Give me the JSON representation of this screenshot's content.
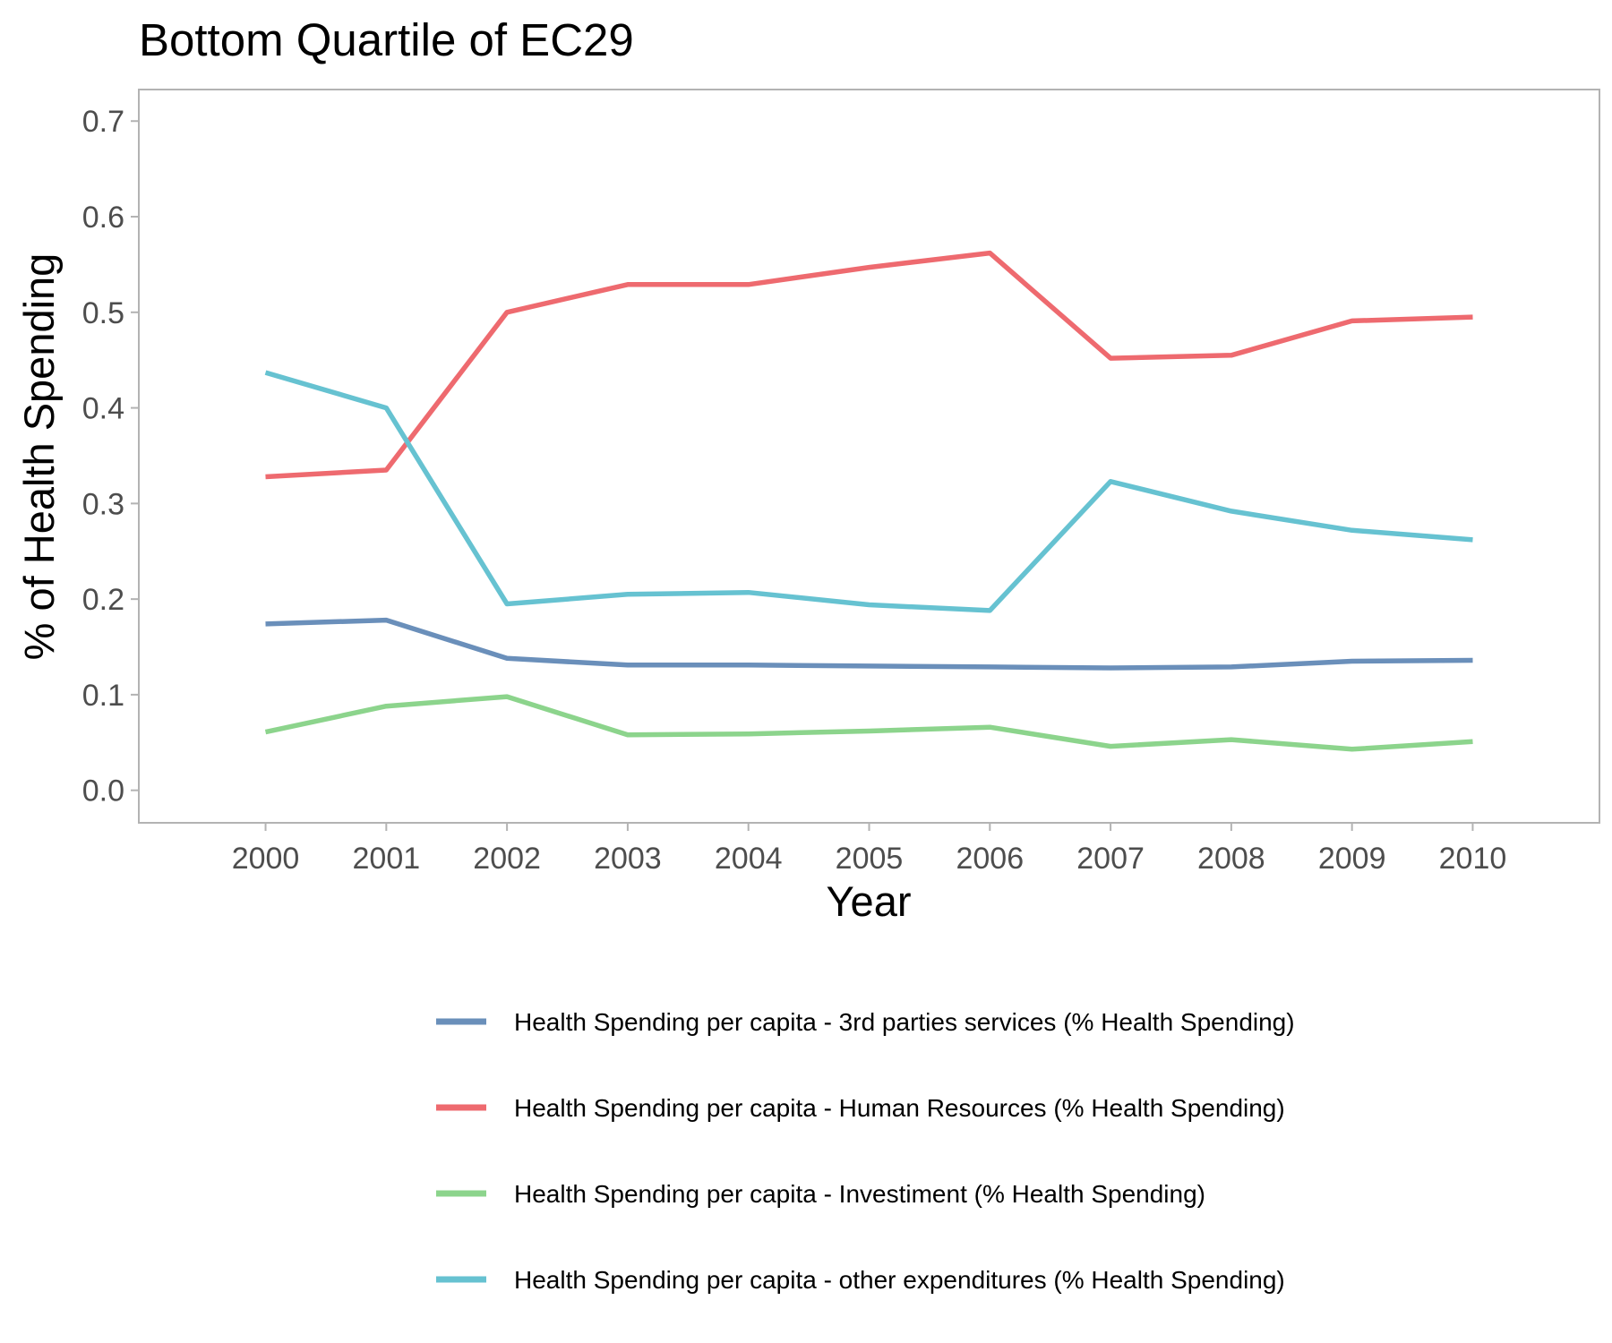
{
  "chart_data": {
    "type": "line",
    "title": "Bottom Quartile of EC29",
    "xlabel": "Year",
    "ylabel": "% of Health Spending",
    "x": [
      "2000",
      "2001",
      "2002",
      "2003",
      "2004",
      "2005",
      "2006",
      "2007",
      "2008",
      "2009",
      "2010"
    ],
    "y_ticks": [
      "0.0",
      "0.1",
      "0.2",
      "0.3",
      "0.4",
      "0.5",
      "0.6",
      "0.7"
    ],
    "xlim": [
      1998.95,
      2011.05
    ],
    "ylim": [
      -0.034,
      0.733
    ],
    "grid": false,
    "legend_position": "bottom",
    "series": [
      {
        "name": "Health Spending per capita - 3rd parties services (% Health Spending)",
        "color": "#6a8fba",
        "values": [
          0.174,
          0.178,
          0.138,
          0.131,
          0.131,
          0.13,
          0.129,
          0.128,
          0.129,
          0.135,
          0.136
        ]
      },
      {
        "name": "Health Spending per capita - Human Resources (% Health Spending)",
        "color": "#ee6a6f",
        "values": [
          0.328,
          0.335,
          0.5,
          0.529,
          0.529,
          0.547,
          0.562,
          0.452,
          0.455,
          0.491,
          0.495
        ]
      },
      {
        "name": "Health Spending per capita - Investiment (% Health Spending)",
        "color": "#8cd48c",
        "values": [
          0.061,
          0.088,
          0.098,
          0.058,
          0.059,
          0.062,
          0.066,
          0.046,
          0.053,
          0.043,
          0.051
        ]
      },
      {
        "name": "Health Spending per capita - other expenditures (% Health Spending)",
        "color": "#66c2d1",
        "values": [
          0.437,
          0.4,
          0.195,
          0.205,
          0.207,
          0.194,
          0.188,
          0.323,
          0.292,
          0.272,
          0.262
        ]
      }
    ]
  }
}
